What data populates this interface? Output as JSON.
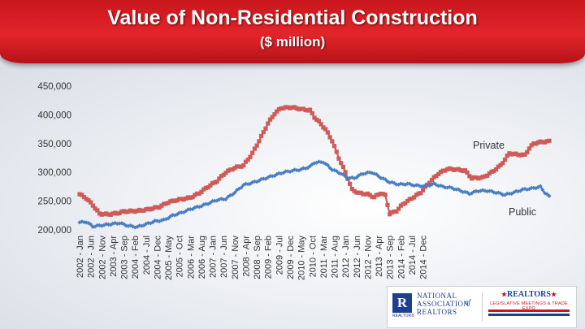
{
  "header": {
    "title": "Value of Non-Residential Construction",
    "subtitle": "($ million)"
  },
  "logo": {
    "nar_lines": "NATIONAL\nASSOCIATION\nREALTORS",
    "nar_of": "of",
    "r_mark": "R",
    "r_mark_sub": "REALTOR®",
    "realtors": "REALTORS",
    "legislative": "LEGISLATIVE MEETINGS & TRADE EXPO"
  },
  "colors": {
    "banner": "#d61f25",
    "private": "#cf5b58",
    "public": "#4a7fc1",
    "axis_text": "#333333"
  },
  "chart_data": {
    "type": "line",
    "title": "Value of Non-Residential Construction",
    "subtitle": "($ million)",
    "xlabel": "",
    "ylabel": "",
    "ylim": [
      200000,
      450000
    ],
    "y_ticks": [
      "450,000",
      "400,000",
      "350,000",
      "300,000",
      "250,000",
      "200,000"
    ],
    "y_tick_values": [
      450000,
      400000,
      350000,
      300000,
      250000,
      200000
    ],
    "x_ticks": [
      "2002 - Jan",
      "2002 - Jun",
      "2002 - Nov",
      "2003 - Apr",
      "2003 - Sep",
      "2004 - Feb",
      "2004 - Jul",
      "2004 - Dec",
      "2005 - May",
      "2005 - Oct",
      "2006 - Mar",
      "2006 - Aug",
      "2007 - Jan",
      "2007 - Jun",
      "2007 - Nov",
      "2008 - Apr",
      "2008 - Sep",
      "2009 - Feb",
      "2009 - Jul",
      "2009 - Dec",
      "2010 - May",
      "2010 - Oct",
      "2011 - Mar",
      "2011 - Aug",
      "2012 - Jan",
      "2012 - Jun",
      "2012 - Nov",
      "2013 - Apr",
      "2013 - Sep",
      "2014 - Feb",
      "2014 - Jul",
      "2014 - Dec"
    ],
    "tick_month_step": 5,
    "series": [
      {
        "name": "Private",
        "label": "Private",
        "color": "#cf5b58",
        "marker": "square",
        "keyframes": [
          [
            0,
            262000
          ],
          [
            3,
            255000
          ],
          [
            6,
            243000
          ],
          [
            9,
            228000
          ],
          [
            13,
            227000
          ],
          [
            17,
            229000
          ],
          [
            20,
            232000
          ],
          [
            26,
            233000
          ],
          [
            30,
            235000
          ],
          [
            36,
            240000
          ],
          [
            40,
            248000
          ],
          [
            44,
            252000
          ],
          [
            50,
            256000
          ],
          [
            54,
            264000
          ],
          [
            58,
            275000
          ],
          [
            62,
            285000
          ],
          [
            66,
            300000
          ],
          [
            70,
            308000
          ],
          [
            74,
            312000
          ],
          [
            78,
            333000
          ],
          [
            82,
            362000
          ],
          [
            85,
            385000
          ],
          [
            88,
            402000
          ],
          [
            91,
            412000
          ],
          [
            96,
            413000
          ],
          [
            100,
            410000
          ],
          [
            104,
            408000
          ],
          [
            106,
            396000
          ],
          [
            108,
            388000
          ],
          [
            111,
            375000
          ],
          [
            114,
            355000
          ],
          [
            117,
            325000
          ],
          [
            120,
            300000
          ],
          [
            123,
            270000
          ],
          [
            126,
            264000
          ],
          [
            130,
            262000
          ],
          [
            133,
            257000
          ],
          [
            136,
            264000
          ],
          [
            138,
            260000
          ],
          [
            140,
            228000
          ],
          [
            143,
            233000
          ],
          [
            146,
            245000
          ],
          [
            150,
            255000
          ],
          [
            154,
            265000
          ],
          [
            158,
            283000
          ],
          [
            162,
            298000
          ],
          [
            166,
            306000
          ],
          [
            170,
            305000
          ],
          [
            174,
            303000
          ],
          [
            177,
            290000
          ],
          [
            182,
            291000
          ],
          [
            186,
            300000
          ],
          [
            190,
            312000
          ],
          [
            194,
            333000
          ],
          [
            198,
            331000
          ],
          [
            201,
            330000
          ],
          [
            203,
            342000
          ],
          [
            205,
            350000
          ],
          [
            207,
            352000
          ],
          [
            209,
            353000
          ],
          [
            212,
            354000
          ]
        ]
      },
      {
        "name": "Public",
        "label": "Public",
        "color": "#4a7fc1",
        "marker": "diamond",
        "keyframes": [
          [
            0,
            213000
          ],
          [
            3,
            214000
          ],
          [
            6,
            206000
          ],
          [
            10,
            208000
          ],
          [
            14,
            210000
          ],
          [
            18,
            212000
          ],
          [
            22,
            207000
          ],
          [
            26,
            205000
          ],
          [
            30,
            210000
          ],
          [
            34,
            215000
          ],
          [
            38,
            217000
          ],
          [
            42,
            225000
          ],
          [
            46,
            230000
          ],
          [
            50,
            236000
          ],
          [
            56,
            243000
          ],
          [
            62,
            252000
          ],
          [
            66,
            254000
          ],
          [
            70,
            265000
          ],
          [
            74,
            278000
          ],
          [
            78,
            282000
          ],
          [
            84,
            290000
          ],
          [
            88,
            295000
          ],
          [
            92,
            300000
          ],
          [
            96,
            303000
          ],
          [
            100,
            305000
          ],
          [
            104,
            310000
          ],
          [
            106,
            317000
          ],
          [
            110,
            318000
          ],
          [
            114,
            305000
          ],
          [
            118,
            298000
          ],
          [
            121,
            290000
          ],
          [
            124,
            290000
          ],
          [
            128,
            298000
          ],
          [
            132,
            300000
          ],
          [
            136,
            291000
          ],
          [
            140,
            283000
          ],
          [
            144,
            279000
          ],
          [
            148,
            280000
          ],
          [
            152,
            277000
          ],
          [
            156,
            276000
          ],
          [
            160,
            280000
          ],
          [
            164,
            275000
          ],
          [
            168,
            273000
          ],
          [
            172,
            268000
          ],
          [
            176,
            263000
          ],
          [
            180,
            268000
          ],
          [
            184,
            268000
          ],
          [
            188,
            265000
          ],
          [
            192,
            261000
          ],
          [
            196,
            265000
          ],
          [
            200,
            270000
          ],
          [
            204,
            272000
          ],
          [
            208,
            275000
          ],
          [
            210,
            265000
          ],
          [
            212,
            258000
          ]
        ]
      }
    ]
  }
}
